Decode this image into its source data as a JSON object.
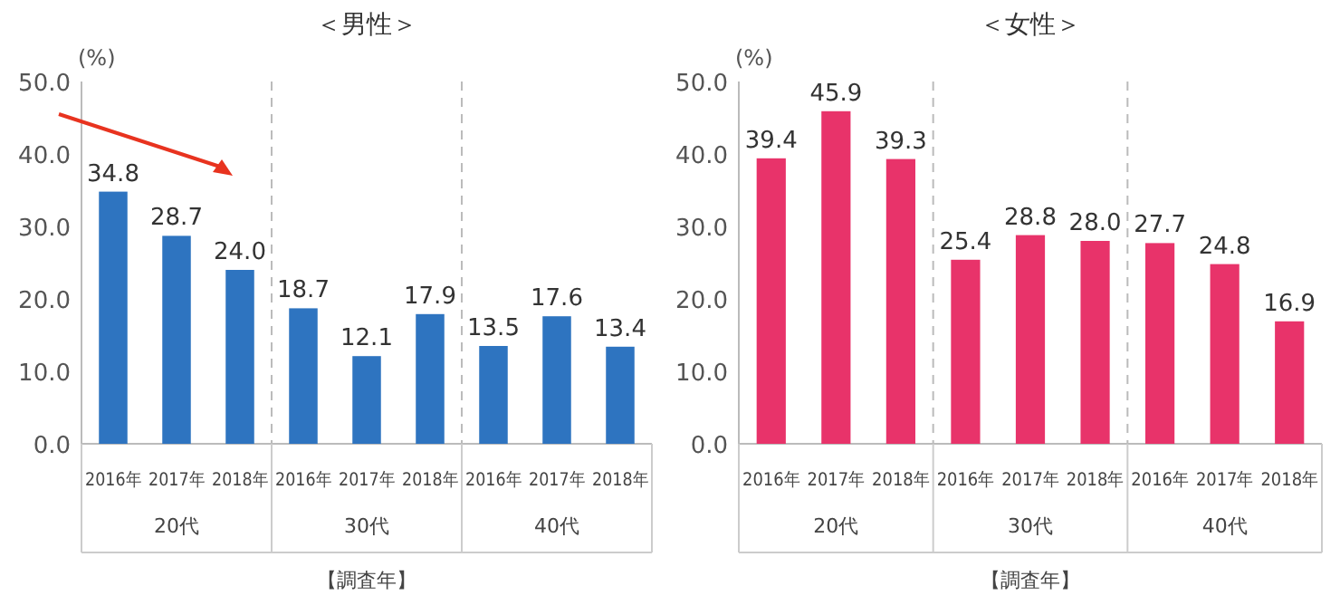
{
  "chart_data": [
    {
      "type": "bar",
      "title": "＜男性＞",
      "ylabel": "(%)",
      "xlabel": "【調査年】",
      "categories": [
        "2016年",
        "2017年",
        "2018年",
        "2016年",
        "2017年",
        "2018年",
        "2016年",
        "2017年",
        "2018年"
      ],
      "values": [
        34.8,
        28.7,
        24.0,
        18.7,
        12.1,
        17.9,
        13.5,
        17.6,
        13.4
      ],
      "color": "#2e74c0",
      "ylim": [
        0,
        50
      ],
      "yticks": [
        {
          "value": 0,
          "label": "0.0"
        },
        {
          "value": 10,
          "label": "10.0"
        },
        {
          "value": 20,
          "label": "20.0"
        },
        {
          "value": 30,
          "label": "30.0"
        },
        {
          "value": 40,
          "label": "40.0"
        },
        {
          "value": 50,
          "label": "50.0"
        }
      ],
      "value_labels": [
        "34.8",
        "28.7",
        "24.0",
        "18.7",
        "12.1",
        "17.9",
        "13.5",
        "17.6",
        "13.4"
      ],
      "annotations": [
        "20代",
        "30代",
        "40代"
      ],
      "grid": false
    },
    {
      "type": "bar",
      "title": "＜女性＞",
      "ylabel": "(%)",
      "xlabel": "【調査年】",
      "categories": [
        "2016年",
        "2017年",
        "2018年",
        "2016年",
        "2017年",
        "2018年",
        "2016年",
        "2017年",
        "2018年"
      ],
      "values": [
        39.4,
        45.9,
        39.3,
        25.4,
        28.8,
        28.0,
        27.7,
        24.8,
        16.9
      ],
      "color": "#e8336a",
      "ylim": [
        0,
        50
      ],
      "yticks": [
        {
          "value": 0,
          "label": "0.0"
        },
        {
          "value": 10,
          "label": "10.0"
        },
        {
          "value": 20,
          "label": "20.0"
        },
        {
          "value": 30,
          "label": "30.0"
        },
        {
          "value": 40,
          "label": "40.0"
        },
        {
          "value": 50,
          "label": "50.0"
        }
      ],
      "value_labels": [
        "39.4",
        "45.9",
        "39.3",
        "25.4",
        "28.8",
        "28.0",
        "27.7",
        "24.8",
        "16.9"
      ],
      "annotations": [
        "20代",
        "30代",
        "40代"
      ],
      "grid": false
    }
  ]
}
